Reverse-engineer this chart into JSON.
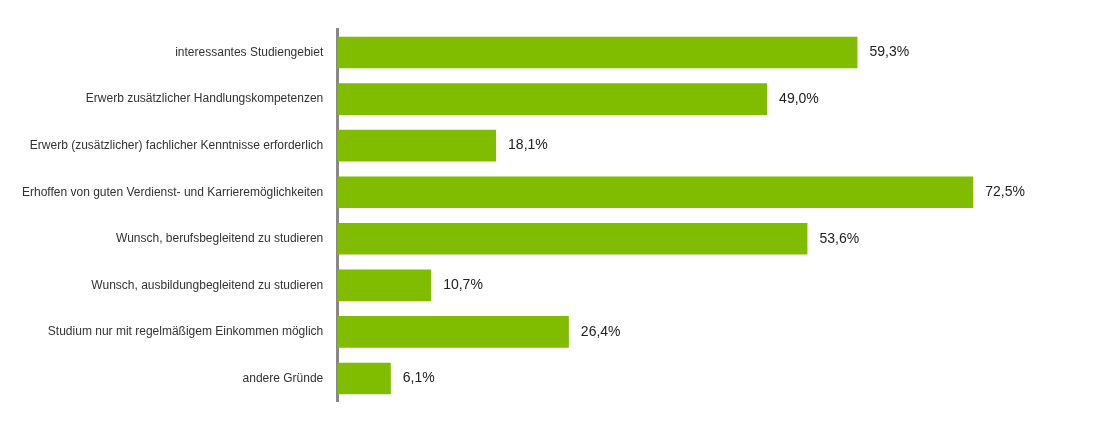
{
  "chart_data": {
    "type": "bar",
    "orientation": "horizontal",
    "categories": [
      "interessantes Studiengebiet",
      "Erwerb zusätzlicher Handlungskompetenzen",
      "Erwerb (zusätzlicher) fachlicher Kenntnisse erforderlich",
      "Erhoffen von guten Verdienst- und Karrieremöglichkeiten",
      "Wunsch, berufsbegleitend zu studieren",
      "Wunsch, ausbildungbegleitend zu studieren",
      "Studium nur mit regelmäßigem Einkommen möglich",
      "andere Gründe"
    ],
    "values": [
      59.3,
      49.0,
      18.1,
      72.5,
      53.6,
      10.7,
      26.4,
      6.1
    ],
    "value_labels": [
      "59,3%",
      "49,0%",
      "18,1%",
      "72,5%",
      "53,6%",
      "10,7%",
      "26,4%",
      "6,1%"
    ],
    "color": "#80bc00"
  }
}
